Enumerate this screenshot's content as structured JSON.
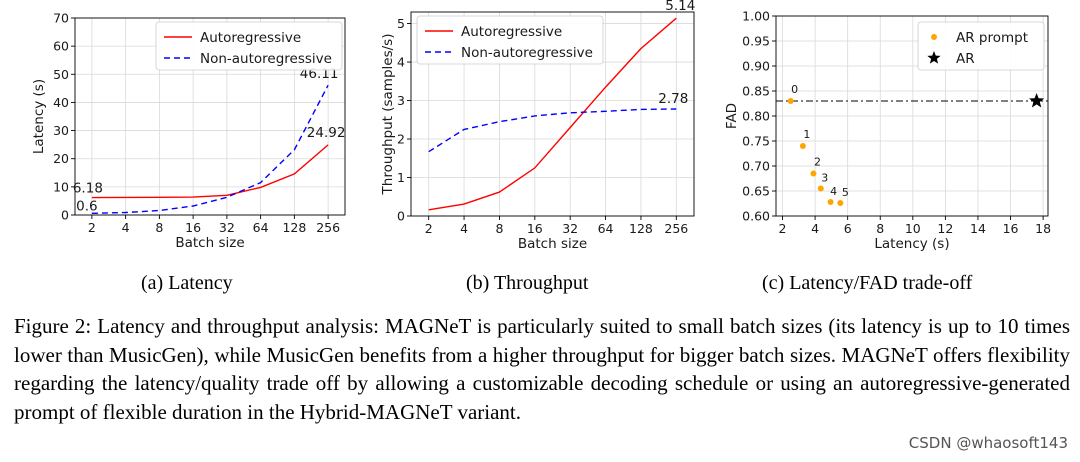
{
  "chart_data": [
    {
      "type": "line",
      "x_categories": [
        "2",
        "4",
        "8",
        "16",
        "32",
        "64",
        "128",
        "256"
      ],
      "xlabel": "Batch size",
      "ylabel": "Latency (s)",
      "ylim": [
        0,
        70
      ],
      "yticks": [
        0,
        10,
        20,
        30,
        40,
        50,
        60,
        70
      ],
      "grid": true,
      "legend_position": "top-right",
      "series": [
        {
          "name": "Autoregressive",
          "color": "#ff0000",
          "dash": "solid",
          "values": [
            6.18,
            6.25,
            6.3,
            6.35,
            7.0,
            9.8,
            14.6,
            24.92
          ]
        },
        {
          "name": "Non-autoregressive",
          "color": "#0000ff",
          "dash": "dashed",
          "values": [
            0.6,
            0.9,
            1.6,
            3.2,
            6.3,
            11.5,
            23.2,
            46.11
          ]
        }
      ],
      "annotations": [
        {
          "text": "6.18",
          "series": 0,
          "index": 0
        },
        {
          "text": "0.6",
          "series": 1,
          "index": 0
        },
        {
          "text": "24.92",
          "series": 0,
          "index": 7
        },
        {
          "text": "46.11",
          "series": 1,
          "index": 7
        }
      ]
    },
    {
      "type": "line",
      "x_categories": [
        "2",
        "4",
        "8",
        "16",
        "32",
        "64",
        "128",
        "256"
      ],
      "xlabel": "Batch size",
      "ylabel": "Throughput (samples/s)",
      "ylim": [
        0,
        5.3
      ],
      "yticks": [
        0,
        1,
        2,
        3,
        4,
        5
      ],
      "grid": true,
      "legend_position": "top-left",
      "series": [
        {
          "name": "Autoregressive",
          "color": "#ff0000",
          "dash": "solid",
          "values": [
            0.16,
            0.31,
            0.62,
            1.25,
            2.3,
            3.35,
            4.35,
            5.14
          ]
        },
        {
          "name": "Non-autoregressive",
          "color": "#0000ff",
          "dash": "dashed",
          "values": [
            1.67,
            2.25,
            2.45,
            2.6,
            2.68,
            2.72,
            2.77,
            2.78
          ]
        }
      ],
      "annotations": [
        {
          "text": "5.14",
          "series": 0,
          "index": 7
        },
        {
          "text": "2.78",
          "series": 1,
          "index": 7
        }
      ]
    },
    {
      "type": "scatter",
      "xlabel": "Latency (s)",
      "ylabel": "FAD",
      "xlim": [
        1.6,
        18.3
      ],
      "ylim": [
        0.6,
        1.0
      ],
      "xticks": [
        2,
        4,
        6,
        8,
        10,
        12,
        14,
        16,
        18
      ],
      "yticks": [
        "0.60",
        "0.65",
        "0.70",
        "0.75",
        "0.80",
        "0.85",
        "0.90",
        "0.95",
        "1.00"
      ],
      "grid": true,
      "legend_position": "top-right",
      "series": [
        {
          "name": "AR prompt",
          "color": "#ffa500",
          "marker": "circle",
          "points": [
            {
              "x": 2.5,
              "y": 0.83,
              "label": "0"
            },
            {
              "x": 3.25,
              "y": 0.74,
              "label": "1"
            },
            {
              "x": 3.9,
              "y": 0.685,
              "label": "2"
            },
            {
              "x": 4.35,
              "y": 0.655,
              "label": "3"
            },
            {
              "x": 4.95,
              "y": 0.628,
              "label": "4"
            },
            {
              "x": 5.55,
              "y": 0.626,
              "label": "5"
            }
          ]
        },
        {
          "name": "AR",
          "color": "#000000",
          "marker": "star",
          "points": [
            {
              "x": 17.6,
              "y": 0.83
            }
          ]
        }
      ],
      "reference_line": {
        "y": 0.83,
        "style": "dash-dot"
      }
    }
  ],
  "subcaptions": {
    "a": "(a) Latency",
    "b": "(b) Throughput",
    "c": "(c) Latency/FAD trade-off"
  },
  "caption": "Figure 2: Latency and throughput analysis: MAGNeT is particularly suited to small batch sizes (its latency is up to 10 times lower than MusicGen), while MusicGen benefits from a higher throughput for bigger batch sizes. MAGNeT offers flexibility regarding the latency/quality trade off by allowing a customizable decoding schedule or using an autoregressive-generated prompt of flexible duration in the Hybrid-MAGNeT variant.",
  "watermark": "CSDN @whaosoft143"
}
